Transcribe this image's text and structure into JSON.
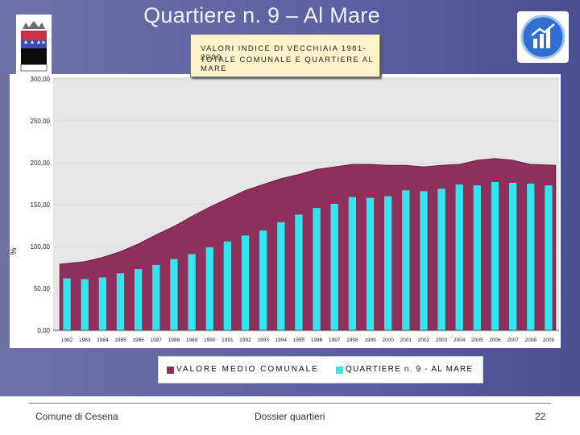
{
  "slide": {
    "title": "Quartiere n. 9 – Al Mare",
    "footer_left": "Comune di Cesena",
    "footer_center": "Dossier quartieri",
    "page_number": "22"
  },
  "chart_data": {
    "type": "bar",
    "title": "VALORI INDICE DI VECCHIAIA 1981-2009",
    "subtitle": "TOTALE COMUNALE E QUARTIERE AL MARE",
    "ylabel": "%",
    "ylim": [
      0,
      300
    ],
    "yticks": [
      "0,00",
      "50,00",
      "100,00",
      "150,00",
      "200,00",
      "250,00",
      "300,00"
    ],
    "categories": [
      "1982",
      "1983",
      "1984",
      "1985",
      "1986",
      "1987",
      "1988",
      "1989",
      "1990",
      "1991",
      "1992",
      "1993",
      "1994",
      "1995",
      "1996",
      "1997",
      "1998",
      "1999",
      "2000",
      "2001",
      "2002",
      "2003",
      "2004",
      "2005",
      "2006",
      "2007",
      "2008",
      "2009"
    ],
    "series": [
      {
        "name": "VALORE MEDIO COMUNALE",
        "kind": "area",
        "color": "#8e2f5c",
        "values": [
          79,
          82,
          87,
          94,
          103,
          114,
          124,
          136,
          147,
          157,
          167,
          174,
          181,
          186,
          192,
          195,
          198,
          198,
          197,
          197,
          195,
          197,
          198,
          203,
          205,
          203,
          198,
          197
        ]
      },
      {
        "name": "QUARTIERE n. 9 - AL MARE",
        "kind": "bar",
        "color": "#33e6ee",
        "values": [
          62,
          61,
          63,
          68,
          73,
          78,
          85,
          91,
          99,
          106,
          113,
          119,
          129,
          138,
          146,
          151,
          159,
          158,
          160,
          167,
          166,
          169,
          174,
          173,
          177,
          176,
          175,
          173
        ]
      }
    ]
  }
}
